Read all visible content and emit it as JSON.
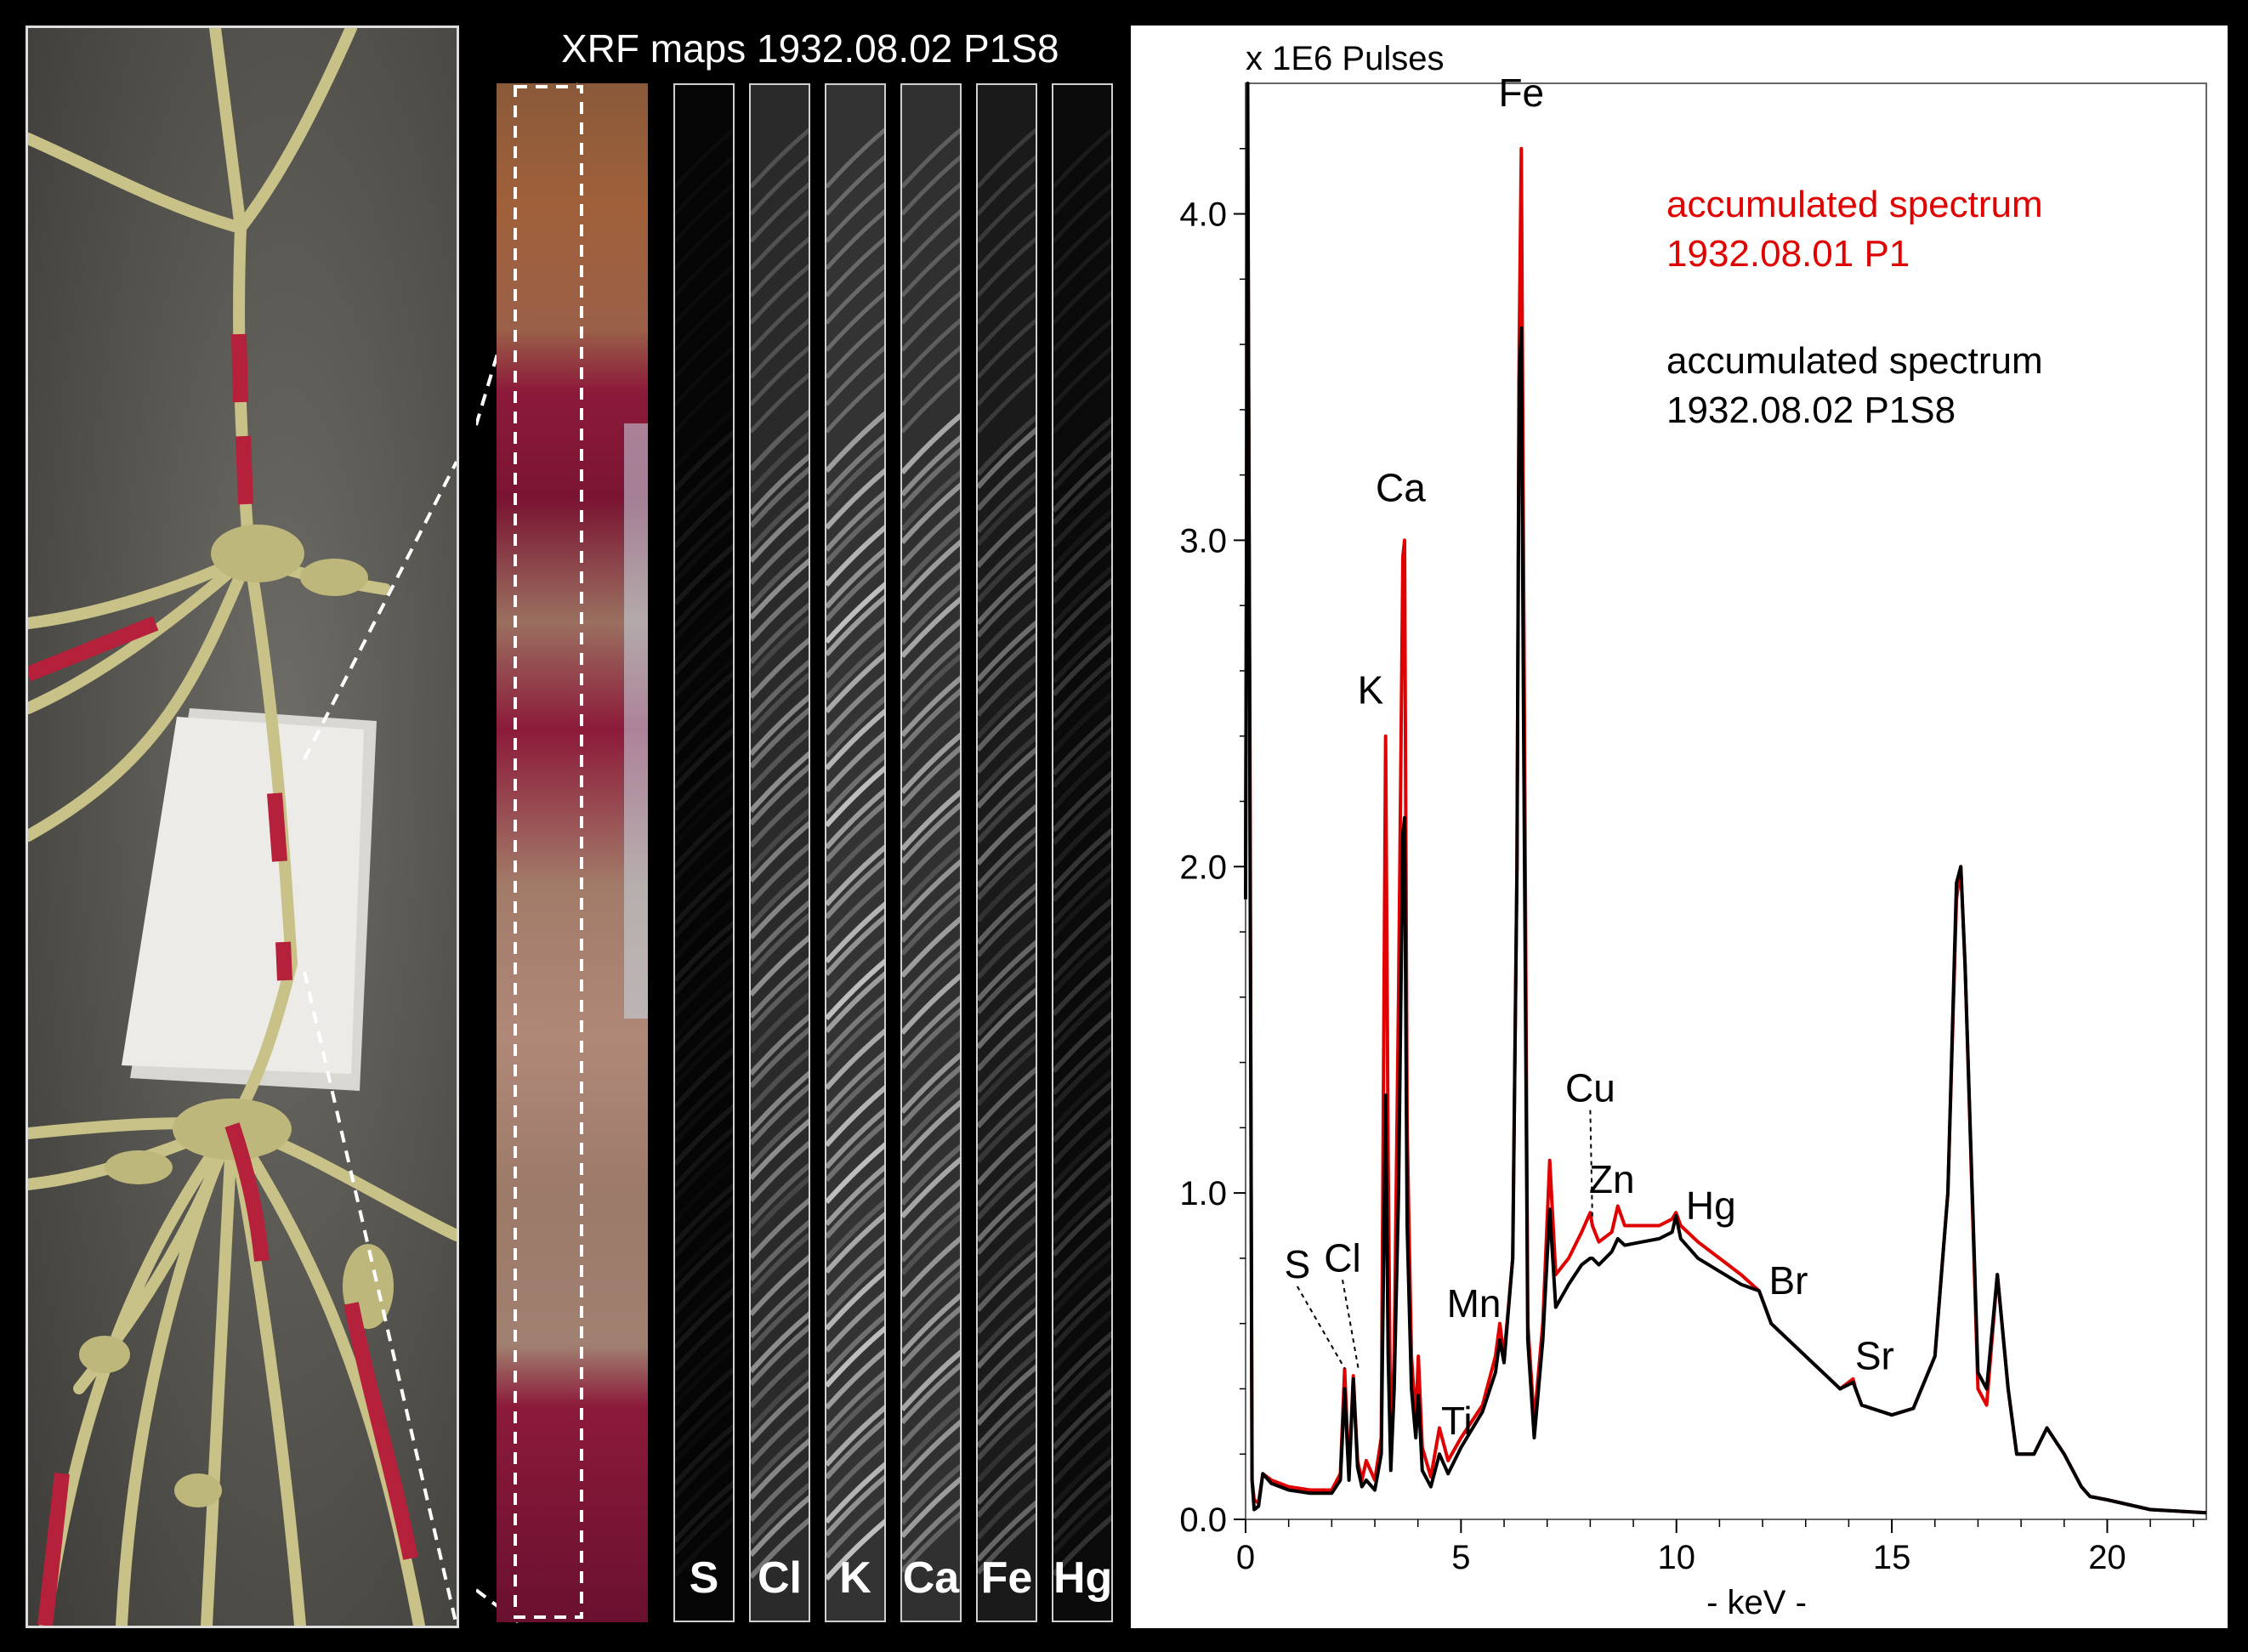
{
  "maps": {
    "title": "XRF maps 1932.08.02 P1S8",
    "strips": [
      {
        "label": "S",
        "base": "#050505",
        "band": "#1a1a1a"
      },
      {
        "label": "Cl",
        "base": "#2a2a2a",
        "band": "#9a9a9a"
      },
      {
        "label": "K",
        "base": "#333333",
        "band": "#cfcfcf"
      },
      {
        "label": "Ca",
        "base": "#303030",
        "band": "#b5b5b5"
      },
      {
        "label": "Fe",
        "base": "#1a1a1a",
        "band": "#777777"
      },
      {
        "label": "Hg",
        "base": "#0a0a0a",
        "band": "#3a3a3a"
      }
    ]
  },
  "colors": {
    "red_series": "#e00000",
    "black_series": "#000000",
    "photo_background": "#5d5b55",
    "rope": "#c8c288",
    "red_thread": "#b5203a"
  },
  "chart_data": {
    "type": "line",
    "ylabel": "x 1E6 Pulses",
    "xlabel": "- keV -",
    "xlim": [
      0,
      22.3
    ],
    "ylim": [
      0,
      4.4
    ],
    "xticks": [
      0,
      5,
      10,
      15,
      20
    ],
    "yticks": [
      0.0,
      1.0,
      2.0,
      3.0,
      4.0
    ],
    "ytick_labels": [
      "0.0",
      "1.0",
      "2.0",
      "3.0",
      "4.0"
    ],
    "grid": false,
    "legend_position": "top-right",
    "legend": [
      {
        "text": [
          "accumulated spectrum",
          "1932.08.01 P1"
        ],
        "color": "#e00000"
      },
      {
        "text": [
          "accumulated spectrum",
          "1932.08.02 P1S8"
        ],
        "color": "#000000"
      }
    ],
    "series": [
      {
        "name": "accumulated spectrum 1932.08.01 P1",
        "color": "#e00000",
        "x": [
          0,
          0.05,
          0.1,
          0.15,
          0.2,
          0.3,
          0.4,
          0.6,
          1.0,
          1.5,
          2.0,
          2.2,
          2.3,
          2.4,
          2.5,
          2.6,
          2.7,
          2.8,
          3.0,
          3.15,
          3.25,
          3.31,
          3.37,
          3.45,
          3.55,
          3.65,
          3.69,
          3.75,
          3.85,
          3.95,
          4.01,
          4.1,
          4.3,
          4.5,
          4.7,
          5.0,
          5.5,
          5.8,
          5.9,
          6.0,
          6.2,
          6.3,
          6.35,
          6.4,
          6.45,
          6.55,
          6.7,
          6.9,
          7.06,
          7.2,
          7.5,
          7.8,
          8.0,
          8.05,
          8.2,
          8.5,
          8.64,
          8.8,
          9.2,
          9.6,
          9.9,
          9.99,
          10.1,
          10.5,
          11.0,
          11.5,
          11.92,
          12.2,
          13.0,
          13.8,
          14.1,
          14.16,
          14.3,
          15.0,
          15.5,
          16.0,
          16.3,
          16.5,
          16.6,
          16.7,
          17.0,
          17.2,
          17.45,
          17.7,
          17.9,
          18.3,
          18.6,
          19.0,
          19.4,
          19.6,
          20.0,
          21.0,
          22.3
        ],
        "y": [
          2.0,
          4.2,
          2.4,
          0.12,
          0.06,
          0.05,
          0.14,
          0.12,
          0.1,
          0.09,
          0.09,
          0.14,
          0.46,
          0.14,
          0.44,
          0.18,
          0.12,
          0.18,
          0.12,
          0.25,
          2.4,
          1.1,
          0.2,
          0.5,
          1.6,
          2.95,
          3.0,
          1.2,
          0.5,
          0.3,
          0.5,
          0.22,
          0.13,
          0.28,
          0.18,
          0.25,
          0.35,
          0.5,
          0.6,
          0.5,
          0.8,
          2.0,
          3.6,
          4.2,
          3.0,
          0.6,
          0.3,
          0.6,
          1.1,
          0.75,
          0.8,
          0.88,
          0.94,
          0.9,
          0.85,
          0.88,
          0.96,
          0.9,
          0.9,
          0.9,
          0.92,
          0.94,
          0.9,
          0.85,
          0.8,
          0.75,
          0.7,
          0.6,
          0.5,
          0.4,
          0.43,
          0.4,
          0.35,
          0.32,
          0.34,
          0.5,
          1.0,
          1.9,
          2.0,
          1.7,
          0.4,
          0.35,
          0.75,
          0.4,
          0.2,
          0.2,
          0.28,
          0.2,
          0.1,
          0.07,
          0.06,
          0.03,
          0.02
        ]
      },
      {
        "name": "accumulated spectrum 1932.08.02 P1S8",
        "color": "#000000",
        "x": [
          0,
          0.05,
          0.1,
          0.15,
          0.2,
          0.3,
          0.4,
          0.6,
          1.0,
          1.5,
          2.0,
          2.2,
          2.3,
          2.4,
          2.5,
          2.6,
          2.7,
          2.8,
          3.0,
          3.15,
          3.25,
          3.31,
          3.37,
          3.45,
          3.55,
          3.65,
          3.69,
          3.75,
          3.85,
          3.95,
          4.01,
          4.1,
          4.3,
          4.5,
          4.7,
          5.0,
          5.5,
          5.8,
          5.9,
          6.0,
          6.2,
          6.3,
          6.35,
          6.4,
          6.45,
          6.55,
          6.7,
          6.9,
          7.06,
          7.2,
          7.5,
          7.8,
          8.0,
          8.05,
          8.2,
          8.5,
          8.64,
          8.8,
          9.2,
          9.6,
          9.9,
          9.99,
          10.1,
          10.5,
          11.0,
          11.5,
          11.92,
          12.2,
          13.0,
          13.8,
          14.1,
          14.16,
          14.3,
          15.0,
          15.5,
          16.0,
          16.3,
          16.5,
          16.6,
          16.7,
          17.0,
          17.2,
          17.45,
          17.7,
          17.9,
          18.3,
          18.6,
          19.0,
          19.4,
          19.6,
          20.0,
          21.0,
          22.3
        ],
        "y": [
          1.9,
          4.4,
          2.2,
          0.12,
          0.03,
          0.04,
          0.14,
          0.11,
          0.09,
          0.08,
          0.08,
          0.12,
          0.4,
          0.12,
          0.43,
          0.16,
          0.1,
          0.12,
          0.09,
          0.2,
          1.3,
          0.5,
          0.15,
          0.4,
          1.0,
          2.1,
          2.15,
          0.9,
          0.4,
          0.25,
          0.38,
          0.15,
          0.1,
          0.2,
          0.14,
          0.22,
          0.33,
          0.45,
          0.55,
          0.48,
          0.8,
          2.0,
          3.5,
          3.65,
          2.5,
          0.55,
          0.25,
          0.55,
          0.95,
          0.65,
          0.72,
          0.78,
          0.8,
          0.8,
          0.78,
          0.82,
          0.86,
          0.84,
          0.85,
          0.86,
          0.88,
          0.93,
          0.86,
          0.8,
          0.76,
          0.72,
          0.7,
          0.6,
          0.5,
          0.4,
          0.42,
          0.4,
          0.35,
          0.32,
          0.34,
          0.5,
          1.0,
          1.95,
          2.0,
          1.7,
          0.45,
          0.4,
          0.75,
          0.4,
          0.2,
          0.2,
          0.28,
          0.2,
          0.1,
          0.07,
          0.06,
          0.03,
          0.02
        ]
      }
    ],
    "annotations": [
      {
        "text": "Fe",
        "x": 6.4,
        "y": 4.2,
        "tx": 6.4,
        "ty": 4.33
      },
      {
        "text": "Ca",
        "x": 3.69,
        "y": 3.0,
        "tx": 3.6,
        "ty": 3.12
      },
      {
        "text": "K",
        "x": 3.31,
        "y": 2.4,
        "tx": 2.9,
        "ty": 2.5
      },
      {
        "text": "Cu",
        "x": 8.05,
        "y": 0.92,
        "tx": 8.0,
        "ty": 1.28,
        "leader": true
      },
      {
        "text": "Zn",
        "x": 8.64,
        "y": 0.96,
        "tx": 8.5,
        "ty": 1.0
      },
      {
        "text": "Hg",
        "x": 9.99,
        "y": 0.94,
        "tx": 10.8,
        "ty": 0.92
      },
      {
        "text": "Br",
        "x": 11.92,
        "y": 0.72,
        "tx": 12.6,
        "ty": 0.69
      },
      {
        "text": "Sr",
        "x": 14.16,
        "y": 0.43,
        "tx": 14.6,
        "ty": 0.46
      },
      {
        "text": "S",
        "x": 2.31,
        "y": 0.46,
        "tx": 1.2,
        "ty": 0.74,
        "leader": true
      },
      {
        "text": "Cl",
        "x": 2.62,
        "y": 0.46,
        "tx": 2.25,
        "ty": 0.76,
        "leader": true
      },
      {
        "text": "Mn",
        "x": 5.9,
        "y": 0.6,
        "tx": 5.3,
        "ty": 0.62
      },
      {
        "text": "Ti",
        "x": 4.51,
        "y": 0.28,
        "tx": 4.9,
        "ty": 0.26
      }
    ]
  }
}
